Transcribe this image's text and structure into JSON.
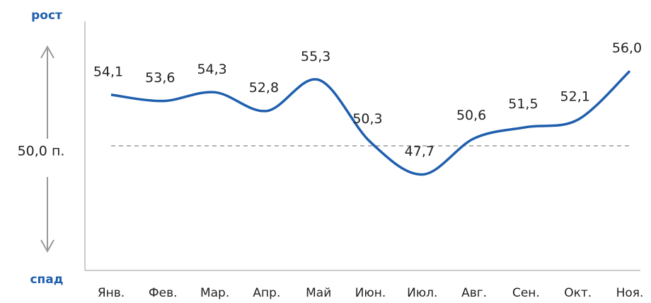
{
  "chart_data": {
    "type": "line",
    "categories": [
      "Янв.",
      "Фев.",
      "Мар.",
      "Апр.",
      "Май",
      "Июн.",
      "Июл.",
      "Авг.",
      "Сен.",
      "Окт.",
      "Ноя."
    ],
    "values": [
      54.1,
      53.6,
      54.3,
      52.8,
      55.3,
      50.3,
      47.7,
      50.6,
      51.5,
      52.1,
      56.0
    ],
    "value_labels": [
      "54,1",
      "53,6",
      "54,3",
      "52,8",
      "55,3",
      "50,3",
      "47,7",
      "50,6",
      "51,5",
      "52,1",
      "56,0"
    ],
    "color": "#1f5fad",
    "ylim": [
      40,
      60
    ],
    "reference_line": {
      "value": 50,
      "label": "50,0 п."
    },
    "top_label": "рост",
    "bottom_label": "спад"
  }
}
